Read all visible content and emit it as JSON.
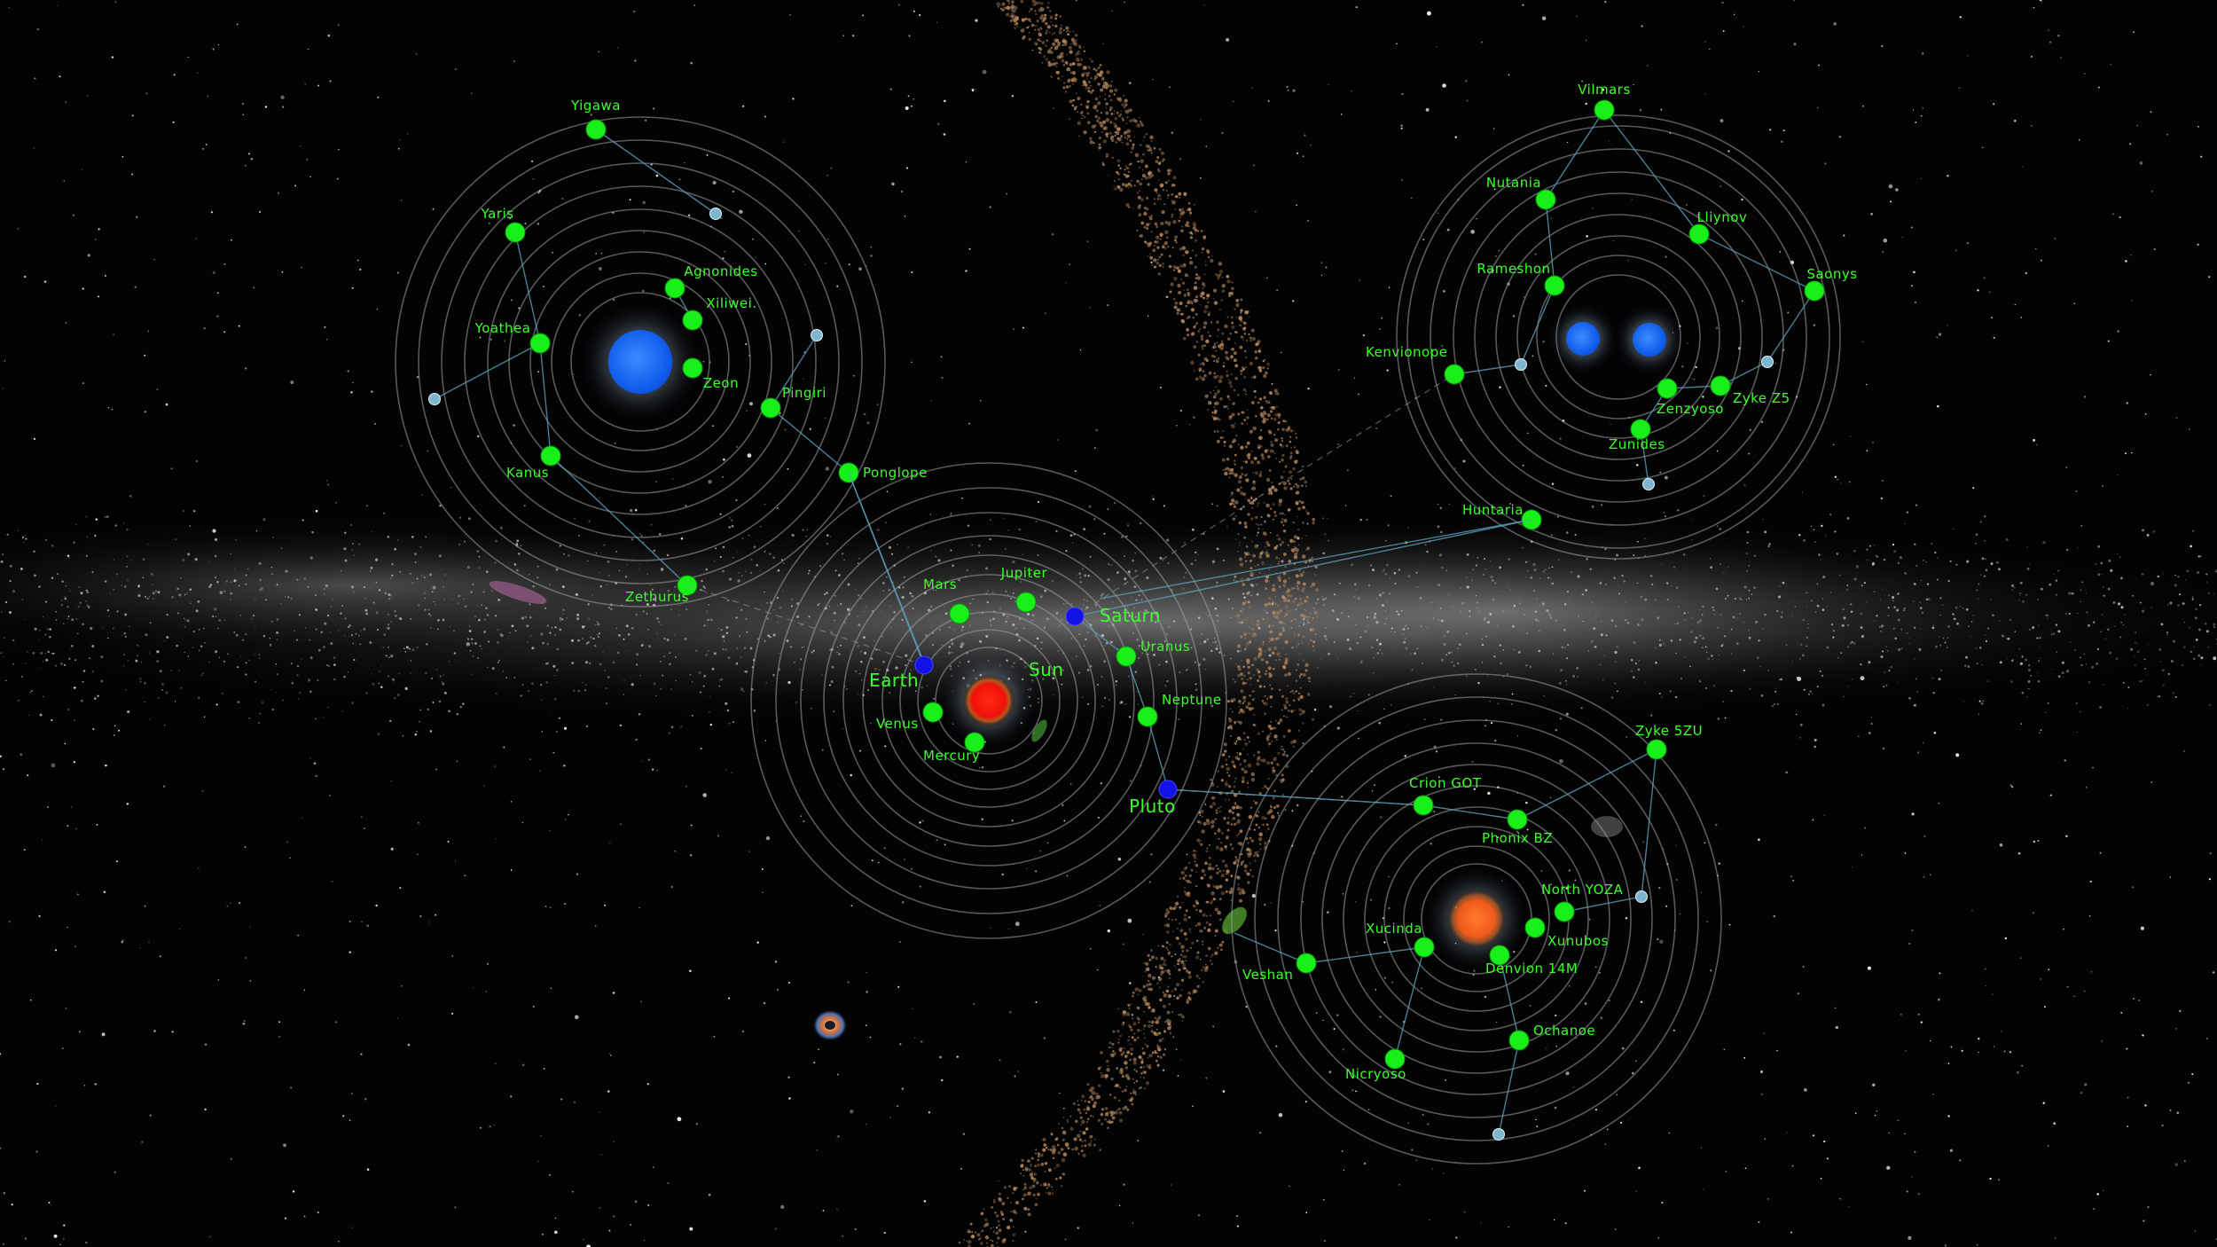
{
  "map": {
    "systems": [
      {
        "id": "blue-system",
        "star_color": "#1a6cff",
        "planets": [
          {
            "name": "Yigawa",
            "kind": "green"
          },
          {
            "name": "Yaris",
            "kind": "green"
          },
          {
            "name": "Agnonides",
            "kind": "green"
          },
          {
            "name": "Xiliwei.",
            "kind": "green"
          },
          {
            "name": "Yoathea",
            "kind": "green"
          },
          {
            "name": "Zeon",
            "kind": "green"
          },
          {
            "name": "Pingiri",
            "kind": "green"
          },
          {
            "name": "Kanus",
            "kind": "green"
          },
          {
            "name": "Ponglope",
            "kind": "green"
          },
          {
            "name": "Zethurus",
            "kind": "green"
          }
        ]
      },
      {
        "id": "binary-system",
        "star_color": "#1a78ff",
        "planets": [
          {
            "name": "Vilmars",
            "kind": "green"
          },
          {
            "name": "Nutania",
            "kind": "green"
          },
          {
            "name": "Lliynov",
            "kind": "green"
          },
          {
            "name": "Saonys",
            "kind": "green"
          },
          {
            "name": "Rameshon",
            "kind": "green"
          },
          {
            "name": "Kenvionope",
            "kind": "green"
          },
          {
            "name": "Zenzyoso",
            "kind": "green"
          },
          {
            "name": "Zyke Z5",
            "kind": "green"
          },
          {
            "name": "Zunides",
            "kind": "green"
          },
          {
            "name": "Huntaria",
            "kind": "green"
          }
        ]
      },
      {
        "id": "sol-system",
        "star_name": "Sun",
        "star_color": "#ff1a0a",
        "planets": [
          {
            "name": "Mars",
            "kind": "green"
          },
          {
            "name": "Jupiter",
            "kind": "green"
          },
          {
            "name": "Saturn",
            "kind": "blue"
          },
          {
            "name": "Earth",
            "kind": "blue"
          },
          {
            "name": "Uranus",
            "kind": "green"
          },
          {
            "name": "Venus",
            "kind": "green"
          },
          {
            "name": "Mercury",
            "kind": "green"
          },
          {
            "name": "Neptune",
            "kind": "green"
          },
          {
            "name": "Pluto",
            "kind": "blue"
          }
        ]
      },
      {
        "id": "orange-system",
        "star_color": "#ff6a22",
        "planets": [
          {
            "name": "Zyke 5ZU",
            "kind": "green"
          },
          {
            "name": "Crion GOT",
            "kind": "green"
          },
          {
            "name": "Phonix BZ",
            "kind": "green"
          },
          {
            "name": "North YOZA",
            "kind": "green"
          },
          {
            "name": "Xucinda",
            "kind": "green"
          },
          {
            "name": "Xunubos",
            "kind": "green"
          },
          {
            "name": "Denvion 14M",
            "kind": "green"
          },
          {
            "name": "Veshan",
            "kind": "green"
          },
          {
            "name": "Ochanoe",
            "kind": "green"
          },
          {
            "name": "Nicryoso",
            "kind": "green"
          }
        ]
      }
    ],
    "colors": {
      "label": "#3cff2a",
      "planet_green": "#19f019",
      "planet_blue": "#1212e6",
      "orbit": "#9aa3a8",
      "route": "#5a9fb8",
      "waypoint": "#7fb6cf"
    }
  }
}
